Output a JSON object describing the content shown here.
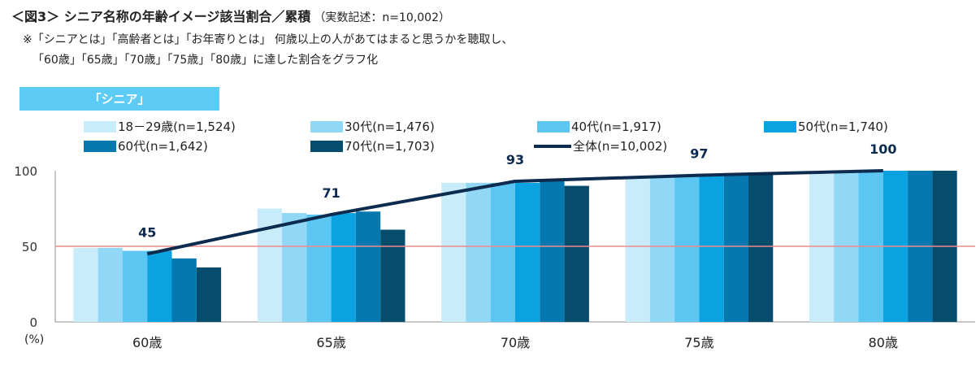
{
  "title": {
    "main": "＜図3＞ シニア名称の年齢イメージ該当割合／累積",
    "sub": "（実数記述：n=10,002）"
  },
  "notes": {
    "line1": "※「シニアとは」「高齢者とは」「お年寄りとは」 何歳以上の人があてはまると思うかを聴取し、",
    "line2": "「60歳」「65歳」「70歳」「75歳」「80歳」に達した割合をグラフ化"
  },
  "badge": "「シニア」",
  "colors": {
    "s1": "#c9ecfb",
    "s2": "#91d8f7",
    "s3": "#5bc6f2",
    "s4": "#0aa2e1",
    "s5": "#0578b0",
    "s6": "#054c6d",
    "total_line": "#0d2b4e",
    "ref_line": "#f08a8a",
    "axis": "#8c8c8c"
  },
  "chart_data": {
    "type": "bar",
    "categories": [
      "60歳",
      "65歳",
      "70歳",
      "75歳",
      "80歳"
    ],
    "series": [
      {
        "name": "18－29歳(n=1,524)",
        "values": [
          49,
          75,
          92,
          95,
          98
        ]
      },
      {
        "name": "30代(n=1,476)",
        "values": [
          49,
          72,
          92,
          96,
          99
        ]
      },
      {
        "name": "40代(n=1,917)",
        "values": [
          47,
          71,
          92,
          96,
          100
        ]
      },
      {
        "name": "50代(n=1,740)",
        "values": [
          47,
          72,
          92,
          97,
          100
        ]
      },
      {
        "name": "60代(n=1,642)",
        "values": [
          42,
          73,
          93,
          98,
          100
        ]
      },
      {
        "name": "70代(n=1,703)",
        "values": [
          36,
          61,
          90,
          98,
          100
        ]
      }
    ],
    "line_series": {
      "name": "全体(n=10,002)",
      "values": [
        45,
        71,
        93,
        97,
        100
      ],
      "labels": [
        "45",
        "71",
        "93",
        "97",
        "100"
      ]
    },
    "reference_line": 50,
    "ylim": [
      0,
      100
    ],
    "yticks": [
      "0",
      "50",
      "100"
    ],
    "ylabel": "(%)",
    "xlabel": ""
  }
}
